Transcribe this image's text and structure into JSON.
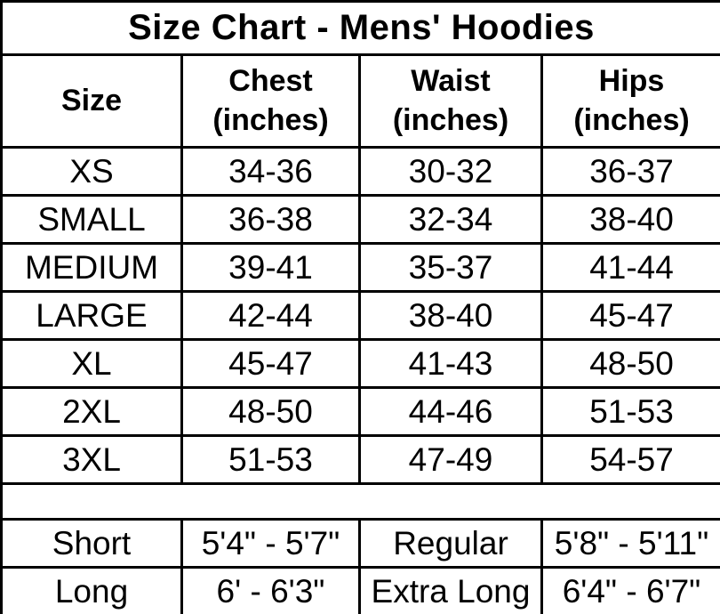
{
  "page": {
    "background_color": "#ffffff",
    "border_color": "#000000",
    "text_color": "#000000"
  },
  "chart_data": {
    "type": "table",
    "title": "Size Chart - Mens' Hoodies",
    "headers": [
      [
        "Size"
      ],
      [
        "Chest",
        "(inches)"
      ],
      [
        "Waist",
        "(inches)"
      ],
      [
        "Hips",
        "(inches)"
      ]
    ],
    "rows": [
      [
        "XS",
        "34-36",
        "30-32",
        "36-37"
      ],
      [
        "SMALL",
        "36-38",
        "32-34",
        "38-40"
      ],
      [
        "MEDIUM",
        "39-41",
        "35-37",
        "41-44"
      ],
      [
        "LARGE",
        "42-44",
        "38-40",
        "45-47"
      ],
      [
        "XL",
        "45-47",
        "41-43",
        "48-50"
      ],
      [
        "2XL",
        "48-50",
        "44-46",
        "51-53"
      ],
      [
        "3XL",
        "51-53",
        "47-49",
        "54-57"
      ]
    ],
    "height_rows": [
      [
        "Short",
        "5'4\" - 5'7\"",
        "Regular",
        "5'8\" - 5'11\""
      ],
      [
        "Long",
        "6' - 6'3\"",
        "Extra Long",
        "6'4\" - 6'7\""
      ]
    ]
  }
}
